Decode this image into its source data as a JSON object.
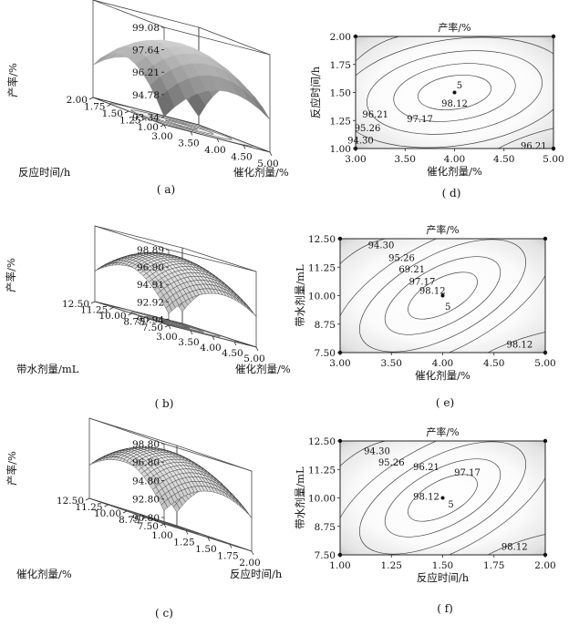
{
  "chart_data": [
    {
      "id": "a",
      "type": "surface3d",
      "caption": "( a)",
      "zlabel": "产率/%",
      "xlabel": "催化剂量/%",
      "ylabel": "反应时间/h",
      "z_ticks": [
        "99.08",
        "97.64",
        "96.21",
        "94.78",
        "93.34"
      ],
      "x_ticks": [
        "3.00",
        "3.50",
        "4.00",
        "4.50",
        "5.00"
      ],
      "y_ticks": [
        "1.00",
        "1.25",
        "1.50",
        "1.75",
        "2.00"
      ],
      "xlim": [
        3.0,
        5.0
      ],
      "ylim": [
        1.0,
        2.0
      ],
      "zlim": [
        93.34,
        99.08
      ],
      "optimum": {
        "x": 4.0,
        "y": 1.5,
        "z": 98.12
      },
      "surface_style": "smooth grey shaded"
    },
    {
      "id": "b",
      "type": "surface3d",
      "caption": "( b)",
      "zlabel": "产率/%",
      "xlabel": "催化剂量/%",
      "ylabel": "带水剂量/mL",
      "z_ticks": [
        "98.89",
        "96.90",
        "94.91",
        "92.92",
        "90.94"
      ],
      "x_ticks": [
        "3.00",
        "3.50",
        "4.00",
        "4.50",
        "5.00"
      ],
      "y_ticks": [
        "7.50",
        "8.75",
        "10.00",
        "11.25",
        "12.50"
      ],
      "xlim": [
        3.0,
        5.0
      ],
      "ylim": [
        7.5,
        12.5
      ],
      "zlim": [
        90.94,
        98.89
      ],
      "optimum": {
        "x": 4.0,
        "y": 10.0,
        "z": 98.12
      },
      "surface_style": "wireframe mesh"
    },
    {
      "id": "c",
      "type": "surface3d",
      "caption": "( c)",
      "zlabel": "产率/%",
      "xlabel": "反应时间/h",
      "ylabel": "催化剂量/%",
      "z_ticks": [
        "98.80",
        "96.80",
        "94.80",
        "92.80",
        "90.80"
      ],
      "x_ticks": [
        "1.00",
        "1.25",
        "1.50",
        "1.75",
        "2.00"
      ],
      "y_ticks": [
        "7.50",
        "8.75",
        "10.00",
        "11.25",
        "12.50"
      ],
      "xlim": [
        1.0,
        2.0
      ],
      "ylim": [
        7.5,
        12.5
      ],
      "zlim": [
        90.8,
        98.8
      ],
      "optimum": {
        "x": 1.5,
        "y": 10.0,
        "z": 98.12
      },
      "surface_style": "wireframe mesh"
    },
    {
      "id": "d",
      "type": "contour",
      "caption": "( d)",
      "title": "产率/%",
      "xlabel": "催化剂量/%",
      "ylabel": "反应时间/h",
      "x_ticks": [
        "3.00",
        "3.50",
        "4.00",
        "4.50",
        "5.00"
      ],
      "y_ticks": [
        "1.00",
        "1.25",
        "1.50",
        "1.75",
        "2.00"
      ],
      "xlim": [
        3.0,
        5.0
      ],
      "ylim": [
        1.0,
        2.0
      ],
      "center": {
        "x": 4.0,
        "y": 1.5
      },
      "center_count_label": "5",
      "contour_levels": [
        98.12,
        97.17,
        96.21,
        95.26,
        94.3
      ],
      "labels": [
        {
          "text": "5",
          "x": 4.05,
          "y": 1.56
        },
        {
          "text": "98.12",
          "x": 4.0,
          "y": 1.4
        },
        {
          "text": "97.17",
          "x": 3.65,
          "y": 1.26
        },
        {
          "text": "96.21",
          "x": 3.2,
          "y": 1.3
        },
        {
          "text": "95.26",
          "x": 3.12,
          "y": 1.18
        },
        {
          "text": "94.30",
          "x": 3.05,
          "y": 1.07
        },
        {
          "text": "96.21",
          "x": 4.8,
          "y": 1.02
        }
      ]
    },
    {
      "id": "e",
      "type": "contour",
      "caption": "( e)",
      "title": "产率/%",
      "xlabel": "催化剂量/%",
      "ylabel": "带水剂量/mL",
      "x_ticks": [
        "3.00",
        "3.50",
        "4.00",
        "4.50",
        "5.00"
      ],
      "y_ticks": [
        "7.50",
        "8.75",
        "10.00",
        "11.25",
        "12.50"
      ],
      "xlim": [
        3.0,
        5.0
      ],
      "ylim": [
        7.5,
        12.5
      ],
      "center": {
        "x": 4.0,
        "y": 10.0
      },
      "center_count_label": "5",
      "contour_levels": [
        98.12,
        97.17,
        69.21,
        95.26,
        94.3
      ],
      "labels": [
        {
          "text": "94.30",
          "x": 3.4,
          "y": 12.2
        },
        {
          "text": "95.26",
          "x": 3.6,
          "y": 11.65
        },
        {
          "text": "69.21",
          "x": 3.7,
          "y": 11.15
        },
        {
          "text": "97.17",
          "x": 3.8,
          "y": 10.6
        },
        {
          "text": "98.12",
          "x": 3.9,
          "y": 10.2
        },
        {
          "text": "5",
          "x": 4.05,
          "y": 9.5
        },
        {
          "text": "98.12",
          "x": 4.75,
          "y": 7.85
        }
      ]
    },
    {
      "id": "f",
      "type": "contour",
      "caption": "( f)",
      "title": "产率/%",
      "xlabel": "反应时间/h",
      "ylabel": "带水剂量/mL",
      "x_ticks": [
        "1.00",
        "1.25",
        "1.50",
        "1.75",
        "2.00"
      ],
      "y_ticks": [
        "7.50",
        "8.75",
        "10.00",
        "11.25",
        "12.50"
      ],
      "xlim": [
        1.0,
        2.0
      ],
      "ylim": [
        7.5,
        12.5
      ],
      "center": {
        "x": 1.5,
        "y": 10.0
      },
      "center_count_label": "5",
      "contour_levels": [
        98.12,
        97.17,
        96.21,
        95.26,
        94.3
      ],
      "labels": [
        {
          "text": "94.30",
          "x": 1.18,
          "y": 12.05
        },
        {
          "text": "95.26",
          "x": 1.25,
          "y": 11.55
        },
        {
          "text": "96.21",
          "x": 1.42,
          "y": 11.35
        },
        {
          "text": "97.17",
          "x": 1.62,
          "y": 11.1
        },
        {
          "text": "98.12",
          "x": 1.42,
          "y": 10.05
        },
        {
          "text": "5",
          "x": 1.54,
          "y": 9.7
        },
        {
          "text": "98.12",
          "x": 1.85,
          "y": 7.85
        }
      ]
    }
  ]
}
